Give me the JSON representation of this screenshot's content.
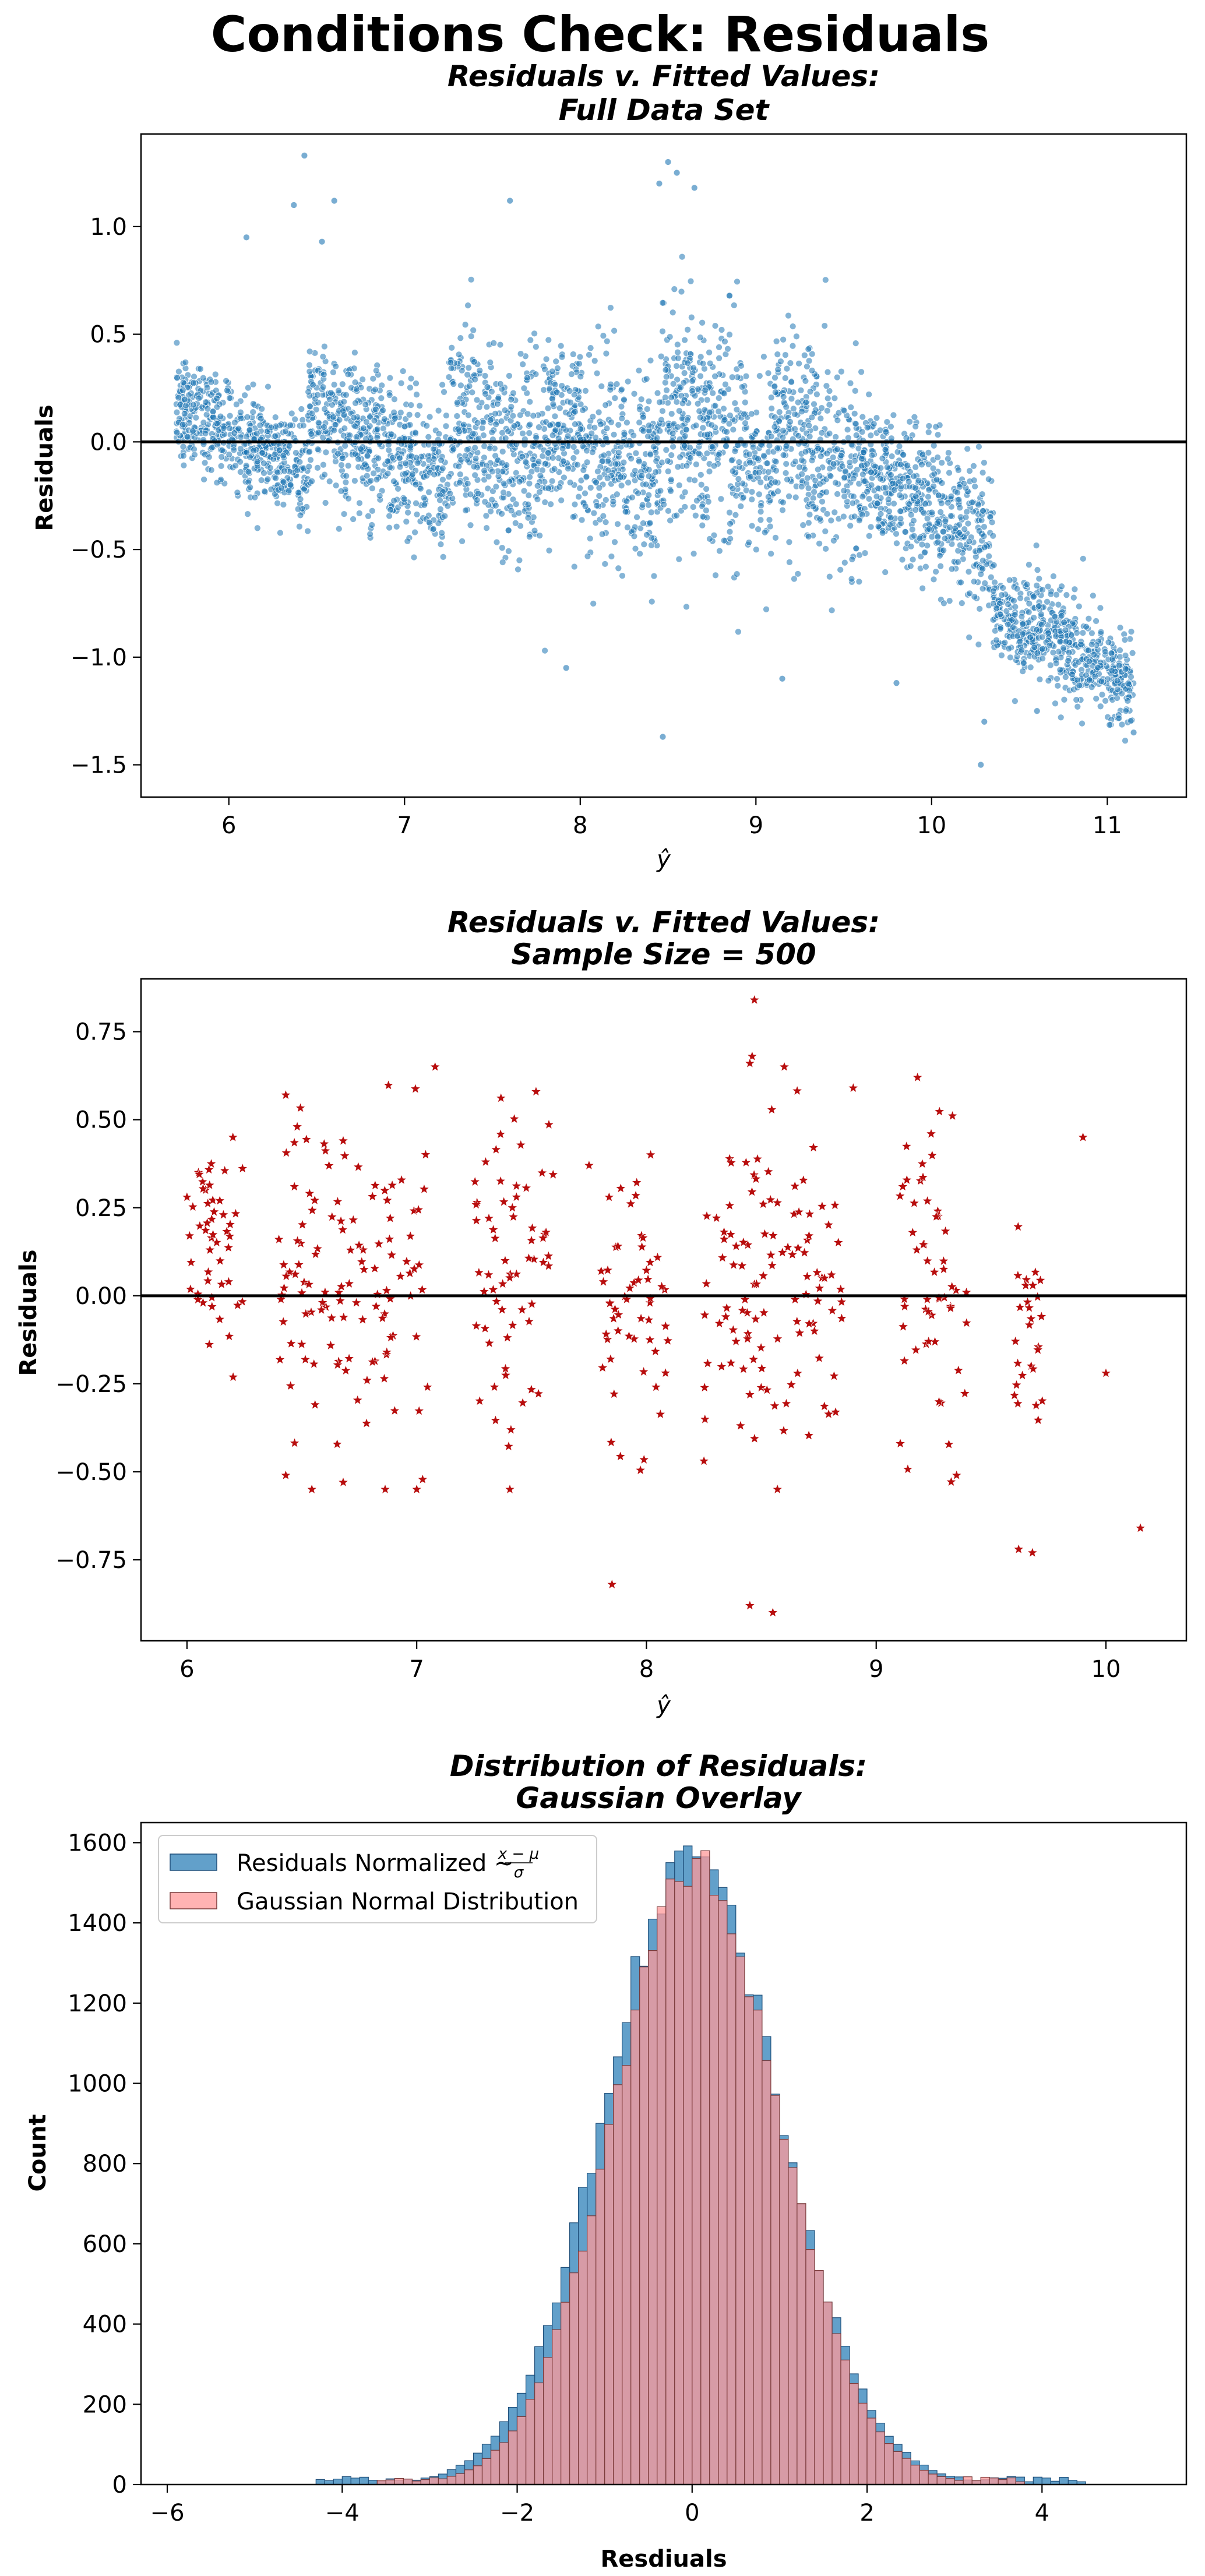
{
  "figure": {
    "suptitle": "Conditions Check: Residuals"
  },
  "colors": {
    "blue": "#1f77b4",
    "red": "#b80d0d",
    "pink": "#ff9a9a",
    "black": "#000000"
  },
  "chart_data": [
    {
      "type": "scatter",
      "title_line1": "Residuals v. Fitted Values:",
      "title_line2": "Full Data Set",
      "xlabel": "ŷ",
      "ylabel": "Residuals",
      "xlim": [
        5.5,
        11.45
      ],
      "ylim": [
        -1.65,
        1.43
      ],
      "xticks": [
        6,
        7,
        8,
        9,
        10,
        11
      ],
      "yticks": [
        -1.5,
        -1.0,
        -0.5,
        0.0,
        0.5,
        1.0
      ],
      "ytick_labels": [
        "−1.5",
        "−1.0",
        "−0.5",
        "0.0",
        "0.5",
        "1.0"
      ],
      "reference_line_y": 0,
      "series": [
        {
          "marker": "circle",
          "color": "#1f77b4",
          "clusters": [
            {
              "x": [
                5.7,
                6.45
              ],
              "center": 0.0,
              "spread": 0.22
            },
            {
              "x": [
                6.45,
                7.25
              ],
              "center": -0.02,
              "spread": 0.3
            },
            {
              "x": [
                7.25,
                7.8
              ],
              "center": 0.0,
              "spread": 0.42
            },
            {
              "x": [
                7.8,
                8.45
              ],
              "center": -0.08,
              "spread": 0.42
            },
            {
              "x": [
                8.45,
                9.1
              ],
              "center": 0.05,
              "spread": 0.48
            },
            {
              "x": [
                9.1,
                9.6
              ],
              "center": -0.05,
              "spread": 0.42
            },
            {
              "x": [
                9.6,
                10.35
              ],
              "center": -0.3,
              "spread": 0.3
            },
            {
              "x": [
                10.35,
                11.15
              ],
              "center": -0.95,
              "spread": 0.22
            }
          ],
          "points": [
            [
              6.43,
              1.33
            ],
            [
              6.37,
              1.1
            ],
            [
              6.6,
              1.12
            ],
            [
              6.1,
              0.95
            ],
            [
              6.53,
              0.93
            ],
            [
              8.5,
              1.3
            ],
            [
              8.55,
              1.25
            ],
            [
              8.45,
              1.2
            ],
            [
              8.65,
              1.18
            ],
            [
              7.6,
              1.12
            ],
            [
              8.47,
              -1.37
            ],
            [
              10.28,
              -1.5
            ],
            [
              11.15,
              -1.35
            ],
            [
              10.8,
              -1.08
            ],
            [
              10.58,
              -0.72
            ],
            [
              7.92,
              -1.05
            ],
            [
              9.15,
              -1.1
            ],
            [
              10.3,
              -1.3
            ],
            [
              9.8,
              -1.12
            ],
            [
              10.6,
              -1.25
            ]
          ]
        }
      ]
    },
    {
      "type": "scatter",
      "title_line1": "Residuals v. Fitted Values:",
      "title_line2": "Sample Size = 500",
      "xlabel": "ŷ",
      "ylabel": "Residuals",
      "xlim": [
        5.8,
        10.35
      ],
      "ylim": [
        -0.98,
        0.9
      ],
      "xticks": [
        6,
        7,
        8,
        9,
        10
      ],
      "yticks": [
        -0.75,
        -0.5,
        -0.25,
        0.0,
        0.25,
        0.5,
        0.75
      ],
      "ytick_labels": [
        "−0.75",
        "−0.50",
        "−0.25",
        "0.00",
        "0.25",
        "0.50",
        "0.75"
      ],
      "reference_line_y": 0,
      "series": [
        {
          "marker": "star",
          "color": "#b80d0d",
          "n": 500,
          "points": [
            [
              8.47,
              0.84
            ],
            [
              8.46,
              0.68
            ],
            [
              8.45,
              0.66
            ],
            [
              8.6,
              0.65
            ],
            [
              7.08,
              0.65
            ],
            [
              9.18,
              0.62
            ],
            [
              8.9,
              0.59
            ],
            [
              6.43,
              0.57
            ],
            [
              6.48,
              0.48
            ],
            [
              6.2,
              0.45
            ],
            [
              6.68,
              0.44
            ],
            [
              8.45,
              -0.88
            ],
            [
              8.55,
              -0.9
            ],
            [
              7.85,
              -0.82
            ],
            [
              10.15,
              -0.66
            ],
            [
              9.62,
              -0.72
            ],
            [
              9.68,
              -0.73
            ],
            [
              10.0,
              -0.22
            ],
            [
              7.0,
              -0.55
            ],
            [
              6.43,
              -0.51
            ],
            [
              6.68,
              -0.53
            ],
            [
              9.35,
              -0.51
            ],
            [
              8.57,
              -0.55
            ],
            [
              6.0,
              0.28
            ],
            [
              6.05,
              0.35
            ],
            [
              6.1,
              0.13
            ],
            [
              6.07,
              -0.02
            ],
            [
              7.3,
              0.38
            ],
            [
              7.75,
              0.37
            ],
            [
              9.9,
              0.45
            ]
          ],
          "clusters": [
            {
              "x": [
                6.0,
                6.25
              ],
              "center": 0.15,
              "spread": 0.18
            },
            {
              "x": [
                6.4,
                7.05
              ],
              "center": 0.0,
              "spread": 0.33
            },
            {
              "x": [
                7.25,
                7.6
              ],
              "center": 0.05,
              "spread": 0.3
            },
            {
              "x": [
                7.8,
                8.1
              ],
              "center": -0.05,
              "spread": 0.28
            },
            {
              "x": [
                8.25,
                8.85
              ],
              "center": 0.02,
              "spread": 0.3
            },
            {
              "x": [
                9.1,
                9.4
              ],
              "center": 0.05,
              "spread": 0.3
            },
            {
              "x": [
                9.6,
                9.75
              ],
              "center": -0.1,
              "spread": 0.2
            }
          ]
        }
      ]
    },
    {
      "type": "histogram",
      "title_line1": "Distribution of Residuals:",
      "title_line2": "Gaussian Overlay",
      "xlabel": "Resdiuals",
      "ylabel": "Count",
      "xlim": [
        -6.3,
        5.65
      ],
      "ylim": [
        0,
        1650
      ],
      "xticks": [
        -6,
        -4,
        -2,
        0,
        2,
        4
      ],
      "xtick_labels": [
        "−6",
        "−4",
        "−2",
        "0",
        "2",
        "4"
      ],
      "yticks": [
        0,
        200,
        400,
        600,
        800,
        1000,
        1200,
        1400,
        1600
      ],
      "legend_position": "upper-left",
      "series": [
        {
          "name": "Residuals Normalized ~ ",
          "name_fraction_num": "x − μ",
          "name_fraction_den": "σ",
          "color": "#1f77b4",
          "alpha": 0.7,
          "bin_width": 0.1,
          "range": [
            -4.3,
            4.9
          ],
          "peak": 1565,
          "mean": 0.0,
          "sd": 1.0
        },
        {
          "name": "Gaussian Normal Distribution",
          "color": "#ff9a9a",
          "alpha": 0.75,
          "bin_width": 0.1,
          "range": [
            -3.6,
            3.8
          ],
          "peak": 1540,
          "mean": 0.05,
          "sd": 0.95
        }
      ]
    }
  ]
}
